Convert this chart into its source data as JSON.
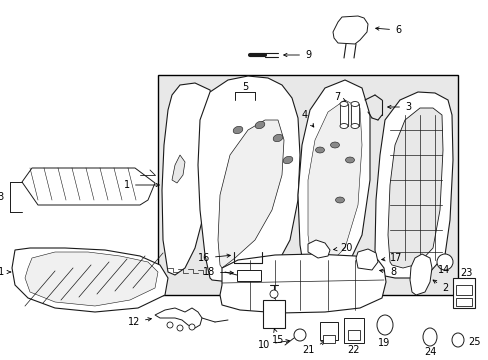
{
  "background_color": "#ffffff",
  "box_bg": "#e8e8e8",
  "line_color": "#1a1a1a",
  "figsize": [
    4.89,
    3.6
  ],
  "dpi": 100
}
